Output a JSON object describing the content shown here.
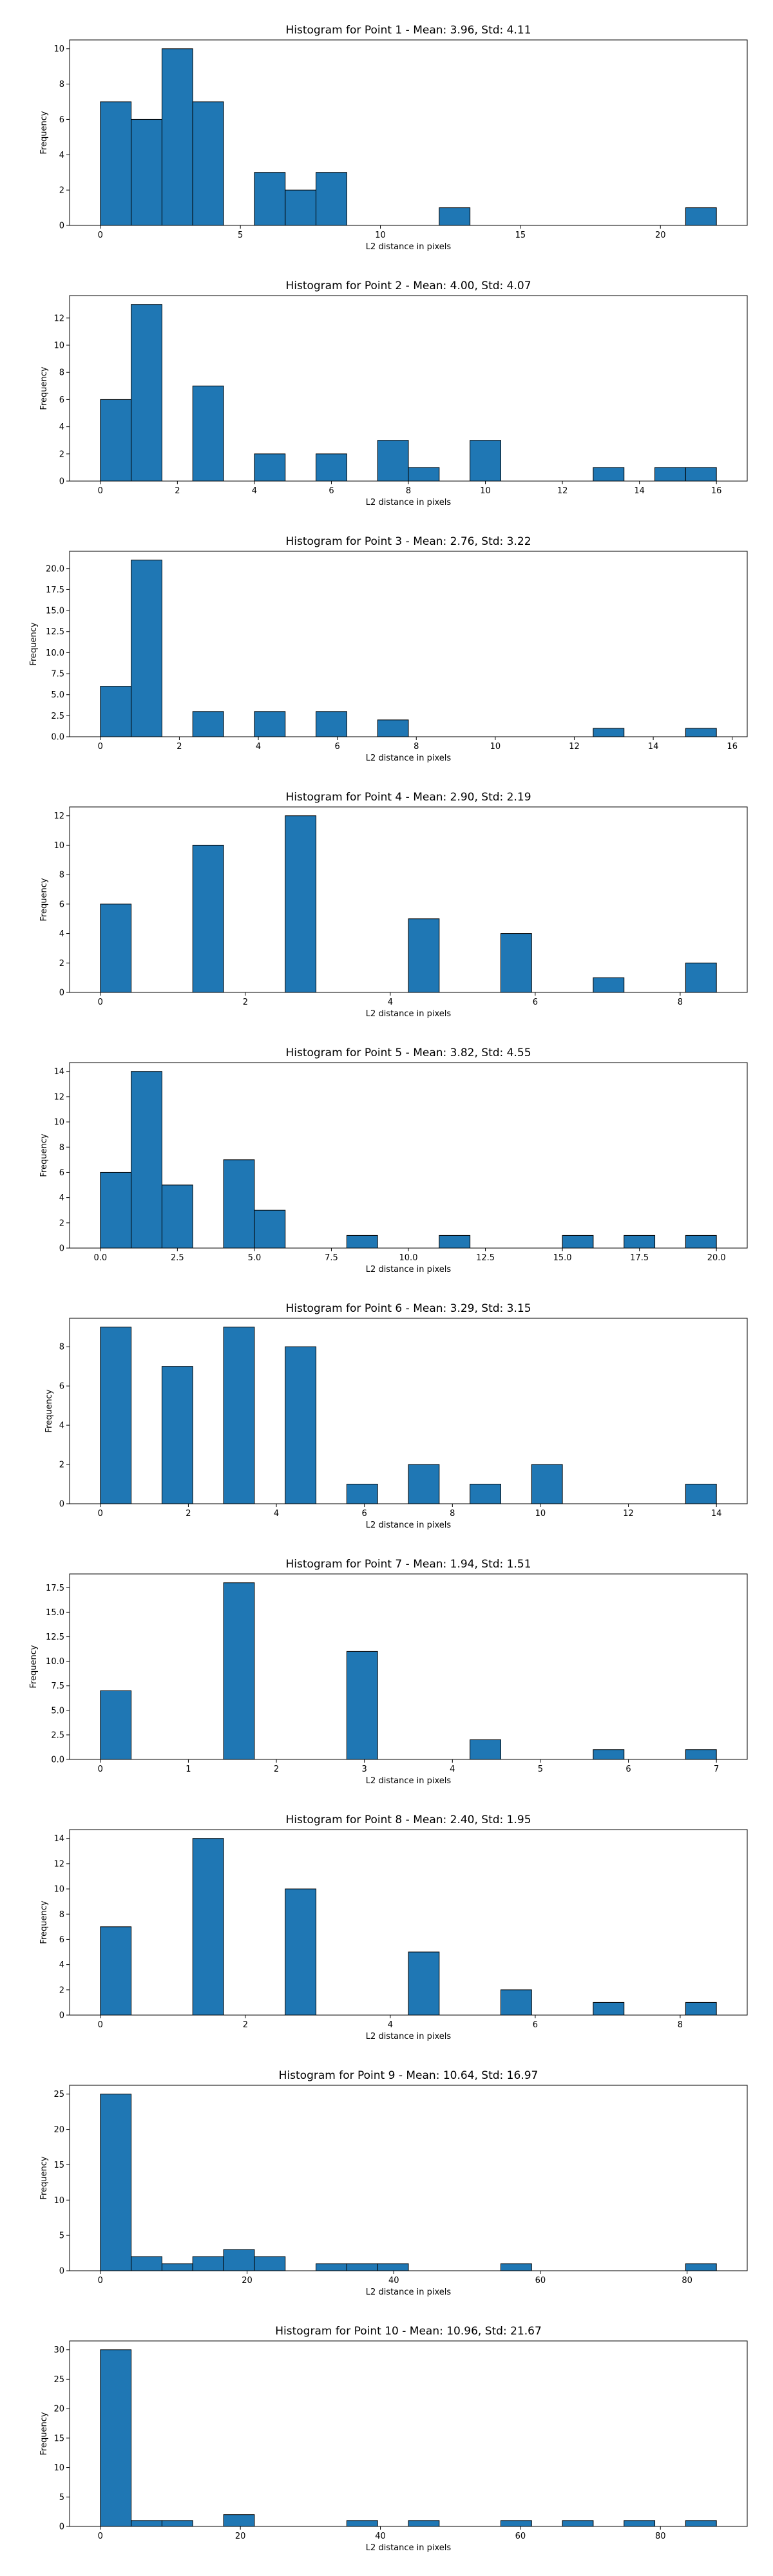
{
  "chart_data": [
    {
      "type": "bar",
      "title": "Histogram for Point 1 - Mean: 3.96, Std: 4.11",
      "xlabel": "L2 distance in pixels",
      "ylabel": "Frequency",
      "xlim": [
        -1.1,
        23.1
      ],
      "ylim": [
        0,
        10.5
      ],
      "xticks": [
        0,
        5,
        10,
        15,
        20
      ],
      "xtick_labels": [
        "0",
        "5",
        "10",
        "15",
        "20"
      ],
      "yticks": [
        0,
        2,
        4,
        6,
        8,
        10
      ],
      "ytick_labels": [
        "0",
        "2",
        "4",
        "6",
        "8",
        "10"
      ],
      "bar_width": 1.1,
      "bars": [
        [
          0,
          7
        ],
        [
          1.1,
          6
        ],
        [
          2.2,
          10
        ],
        [
          3.3,
          7
        ],
        [
          5.5,
          3
        ],
        [
          6.6,
          2
        ],
        [
          7.7,
          3
        ],
        [
          12.1,
          1
        ],
        [
          20.9,
          1
        ]
      ]
    },
    {
      "type": "bar",
      "title": "Histogram for Point 2 - Mean: 4.00, Std: 4.07",
      "xlabel": "L2 distance in pixels",
      "ylabel": "Frequency",
      "xlim": [
        -0.8,
        16.8
      ],
      "ylim": [
        0,
        13.65
      ],
      "xticks": [
        0,
        2,
        4,
        6,
        8,
        10,
        12,
        14,
        16
      ],
      "xtick_labels": [
        "0",
        "2",
        "4",
        "6",
        "8",
        "10",
        "12",
        "14",
        "16"
      ],
      "yticks": [
        0,
        2,
        4,
        6,
        8,
        10,
        12
      ],
      "ytick_labels": [
        "0",
        "2",
        "4",
        "6",
        "8",
        "10",
        "12"
      ],
      "bar_width": 0.8,
      "bars": [
        [
          0,
          6
        ],
        [
          0.8,
          13
        ],
        [
          2.4,
          7
        ],
        [
          4.0,
          2
        ],
        [
          5.6,
          2
        ],
        [
          7.2,
          3
        ],
        [
          8.0,
          1
        ],
        [
          9.6,
          3
        ],
        [
          12.8,
          1
        ],
        [
          14.4,
          1
        ],
        [
          15.2,
          1
        ]
      ]
    },
    {
      "type": "bar",
      "title": "Histogram for Point 3 - Mean: 2.76, Std: 3.22",
      "xlabel": "L2 distance in pixels",
      "ylabel": "Frequency",
      "xlim": [
        -0.78,
        16.38
      ],
      "ylim": [
        0,
        22.05
      ],
      "xticks": [
        0,
        2,
        4,
        6,
        8,
        10,
        12,
        14,
        16
      ],
      "xtick_labels": [
        "0",
        "2",
        "4",
        "6",
        "8",
        "10",
        "12",
        "14",
        "16"
      ],
      "yticks": [
        0,
        2.5,
        5,
        7.5,
        10,
        12.5,
        15,
        17.5,
        20
      ],
      "ytick_labels": [
        "0.0",
        "2.5",
        "5.0",
        "7.5",
        "10.0",
        "12.5",
        "15.0",
        "17.5",
        "20.0"
      ],
      "bar_width": 0.78,
      "bars": [
        [
          0,
          6
        ],
        [
          0.78,
          21
        ],
        [
          2.34,
          3
        ],
        [
          3.9,
          3
        ],
        [
          5.46,
          3
        ],
        [
          7.02,
          2
        ],
        [
          12.48,
          1
        ],
        [
          14.82,
          1
        ]
      ]
    },
    {
      "type": "bar",
      "title": "Histogram for Point 4 - Mean: 2.90, Std: 2.19",
      "xlabel": "L2 distance in pixels",
      "ylabel": "Frequency",
      "xlim": [
        -0.425,
        8.925
      ],
      "ylim": [
        0,
        12.6
      ],
      "xticks": [
        0,
        2,
        4,
        6,
        8
      ],
      "xtick_labels": [
        "0",
        "2",
        "4",
        "6",
        "8"
      ],
      "yticks": [
        0,
        2,
        4,
        6,
        8,
        10,
        12
      ],
      "ytick_labels": [
        "0",
        "2",
        "4",
        "6",
        "8",
        "10",
        "12"
      ],
      "bar_width": 0.425,
      "bars": [
        [
          0,
          6
        ],
        [
          1.275,
          10
        ],
        [
          2.55,
          12
        ],
        [
          4.25,
          5
        ],
        [
          5.525,
          4
        ],
        [
          6.8,
          1
        ],
        [
          8.075,
          2
        ]
      ]
    },
    {
      "type": "bar",
      "title": "Histogram for Point 5 - Mean: 3.82, Std: 4.55",
      "xlabel": "L2 distance in pixels",
      "ylabel": "Frequency",
      "xlim": [
        -1.0,
        21.0
      ],
      "ylim": [
        0,
        14.7
      ],
      "xticks": [
        0,
        2.5,
        5,
        7.5,
        10,
        12.5,
        15,
        17.5,
        20
      ],
      "xtick_labels": [
        "0.0",
        "2.5",
        "5.0",
        "7.5",
        "10.0",
        "12.5",
        "15.0",
        "17.5",
        "20.0"
      ],
      "yticks": [
        0,
        2,
        4,
        6,
        8,
        10,
        12,
        14
      ],
      "ytick_labels": [
        "0",
        "2",
        "4",
        "6",
        "8",
        "10",
        "12",
        "14"
      ],
      "bar_width": 1.0,
      "bars": [
        [
          0,
          6
        ],
        [
          1,
          14
        ],
        [
          2,
          5
        ],
        [
          4,
          7
        ],
        [
          5,
          3
        ],
        [
          8,
          1
        ],
        [
          11,
          1
        ],
        [
          15,
          1
        ],
        [
          17,
          1
        ],
        [
          19,
          1
        ]
      ]
    },
    {
      "type": "bar",
      "title": "Histogram for Point 6 - Mean: 3.29, Std: 3.15",
      "xlabel": "L2 distance in pixels",
      "ylabel": "Frequency",
      "xlim": [
        -0.7,
        14.7
      ],
      "ylim": [
        0,
        9.45
      ],
      "xticks": [
        0,
        2,
        4,
        6,
        8,
        10,
        12,
        14
      ],
      "xtick_labels": [
        "0",
        "2",
        "4",
        "6",
        "8",
        "10",
        "12",
        "14"
      ],
      "yticks": [
        0,
        2,
        4,
        6,
        8
      ],
      "ytick_labels": [
        "0",
        "2",
        "4",
        "6",
        "8"
      ],
      "bar_width": 0.7,
      "bars": [
        [
          0,
          9
        ],
        [
          1.4,
          7
        ],
        [
          2.8,
          9
        ],
        [
          4.2,
          8
        ],
        [
          5.6,
          1
        ],
        [
          7.0,
          2
        ],
        [
          8.4,
          1
        ],
        [
          9.8,
          2
        ],
        [
          13.3,
          1
        ]
      ]
    },
    {
      "type": "bar",
      "title": "Histogram for Point 7 - Mean: 1.94, Std: 1.51",
      "xlabel": "L2 distance in pixels",
      "ylabel": "Frequency",
      "xlim": [
        -0.35,
        7.35
      ],
      "ylim": [
        0,
        18.9
      ],
      "xticks": [
        0,
        1,
        2,
        3,
        4,
        5,
        6,
        7
      ],
      "xtick_labels": [
        "0",
        "1",
        "2",
        "3",
        "4",
        "5",
        "6",
        "7"
      ],
      "yticks": [
        0,
        2.5,
        5,
        7.5,
        10,
        12.5,
        15,
        17.5
      ],
      "ytick_labels": [
        "0.0",
        "2.5",
        "5.0",
        "7.5",
        "10.0",
        "12.5",
        "15.0",
        "17.5"
      ],
      "bar_width": 0.35,
      "bars": [
        [
          0,
          7
        ],
        [
          1.4,
          18
        ],
        [
          2.8,
          11
        ],
        [
          4.2,
          2
        ],
        [
          5.6,
          1
        ],
        [
          6.65,
          1
        ]
      ]
    },
    {
      "type": "bar",
      "title": "Histogram for Point 8 - Mean: 2.40, Std: 1.95",
      "xlabel": "L2 distance in pixels",
      "ylabel": "Frequency",
      "xlim": [
        -0.425,
        8.925
      ],
      "ylim": [
        0,
        14.7
      ],
      "xticks": [
        0,
        2,
        4,
        6,
        8
      ],
      "xtick_labels": [
        "0",
        "2",
        "4",
        "6",
        "8"
      ],
      "yticks": [
        0,
        2,
        4,
        6,
        8,
        10,
        12,
        14
      ],
      "ytick_labels": [
        "0",
        "2",
        "4",
        "6",
        "8",
        "10",
        "12",
        "14"
      ],
      "bar_width": 0.425,
      "bars": [
        [
          0,
          7
        ],
        [
          1.275,
          14
        ],
        [
          2.55,
          10
        ],
        [
          4.25,
          5
        ],
        [
          5.525,
          2
        ],
        [
          6.8,
          1
        ],
        [
          8.075,
          1
        ]
      ]
    },
    {
      "type": "bar",
      "title": "Histogram for Point 9 - Mean: 10.64, Std: 16.97",
      "xlabel": "L2 distance in pixels",
      "ylabel": "Frequency",
      "xlim": [
        -4.2,
        88.2
      ],
      "ylim": [
        0,
        26.25
      ],
      "xticks": [
        0,
        20,
        40,
        60,
        80
      ],
      "xtick_labels": [
        "0",
        "20",
        "40",
        "60",
        "80"
      ],
      "yticks": [
        0,
        5,
        10,
        15,
        20,
        25
      ],
      "ytick_labels": [
        "0",
        "5",
        "10",
        "15",
        "20",
        "25"
      ],
      "bar_width": 4.2,
      "bars": [
        [
          0,
          25
        ],
        [
          4.2,
          2
        ],
        [
          8.4,
          1
        ],
        [
          12.6,
          2
        ],
        [
          16.8,
          3
        ],
        [
          21.0,
          2
        ],
        [
          29.4,
          1
        ],
        [
          33.6,
          1
        ],
        [
          37.8,
          1
        ],
        [
          54.6,
          1
        ],
        [
          79.8,
          1
        ]
      ]
    },
    {
      "type": "bar",
      "title": "Histogram for Point 10 - Mean: 10.96, Std: 21.67",
      "xlabel": "L2 distance in pixels",
      "ylabel": "Frequency",
      "xlim": [
        -4.4,
        92.4
      ],
      "ylim": [
        0,
        31.5
      ],
      "xticks": [
        0,
        20,
        40,
        60,
        80
      ],
      "xtick_labels": [
        "0",
        "20",
        "40",
        "60",
        "80"
      ],
      "yticks": [
        0,
        5,
        10,
        15,
        20,
        25,
        30
      ],
      "ytick_labels": [
        "0",
        "5",
        "10",
        "15",
        "20",
        "25",
        "30"
      ],
      "bar_width": 4.4,
      "bars": [
        [
          0,
          30
        ],
        [
          4.4,
          1
        ],
        [
          8.8,
          1
        ],
        [
          17.6,
          2
        ],
        [
          35.2,
          1
        ],
        [
          44.0,
          1
        ],
        [
          57.2,
          1
        ],
        [
          66.0,
          1
        ],
        [
          74.8,
          1
        ],
        [
          83.6,
          1
        ]
      ]
    }
  ]
}
